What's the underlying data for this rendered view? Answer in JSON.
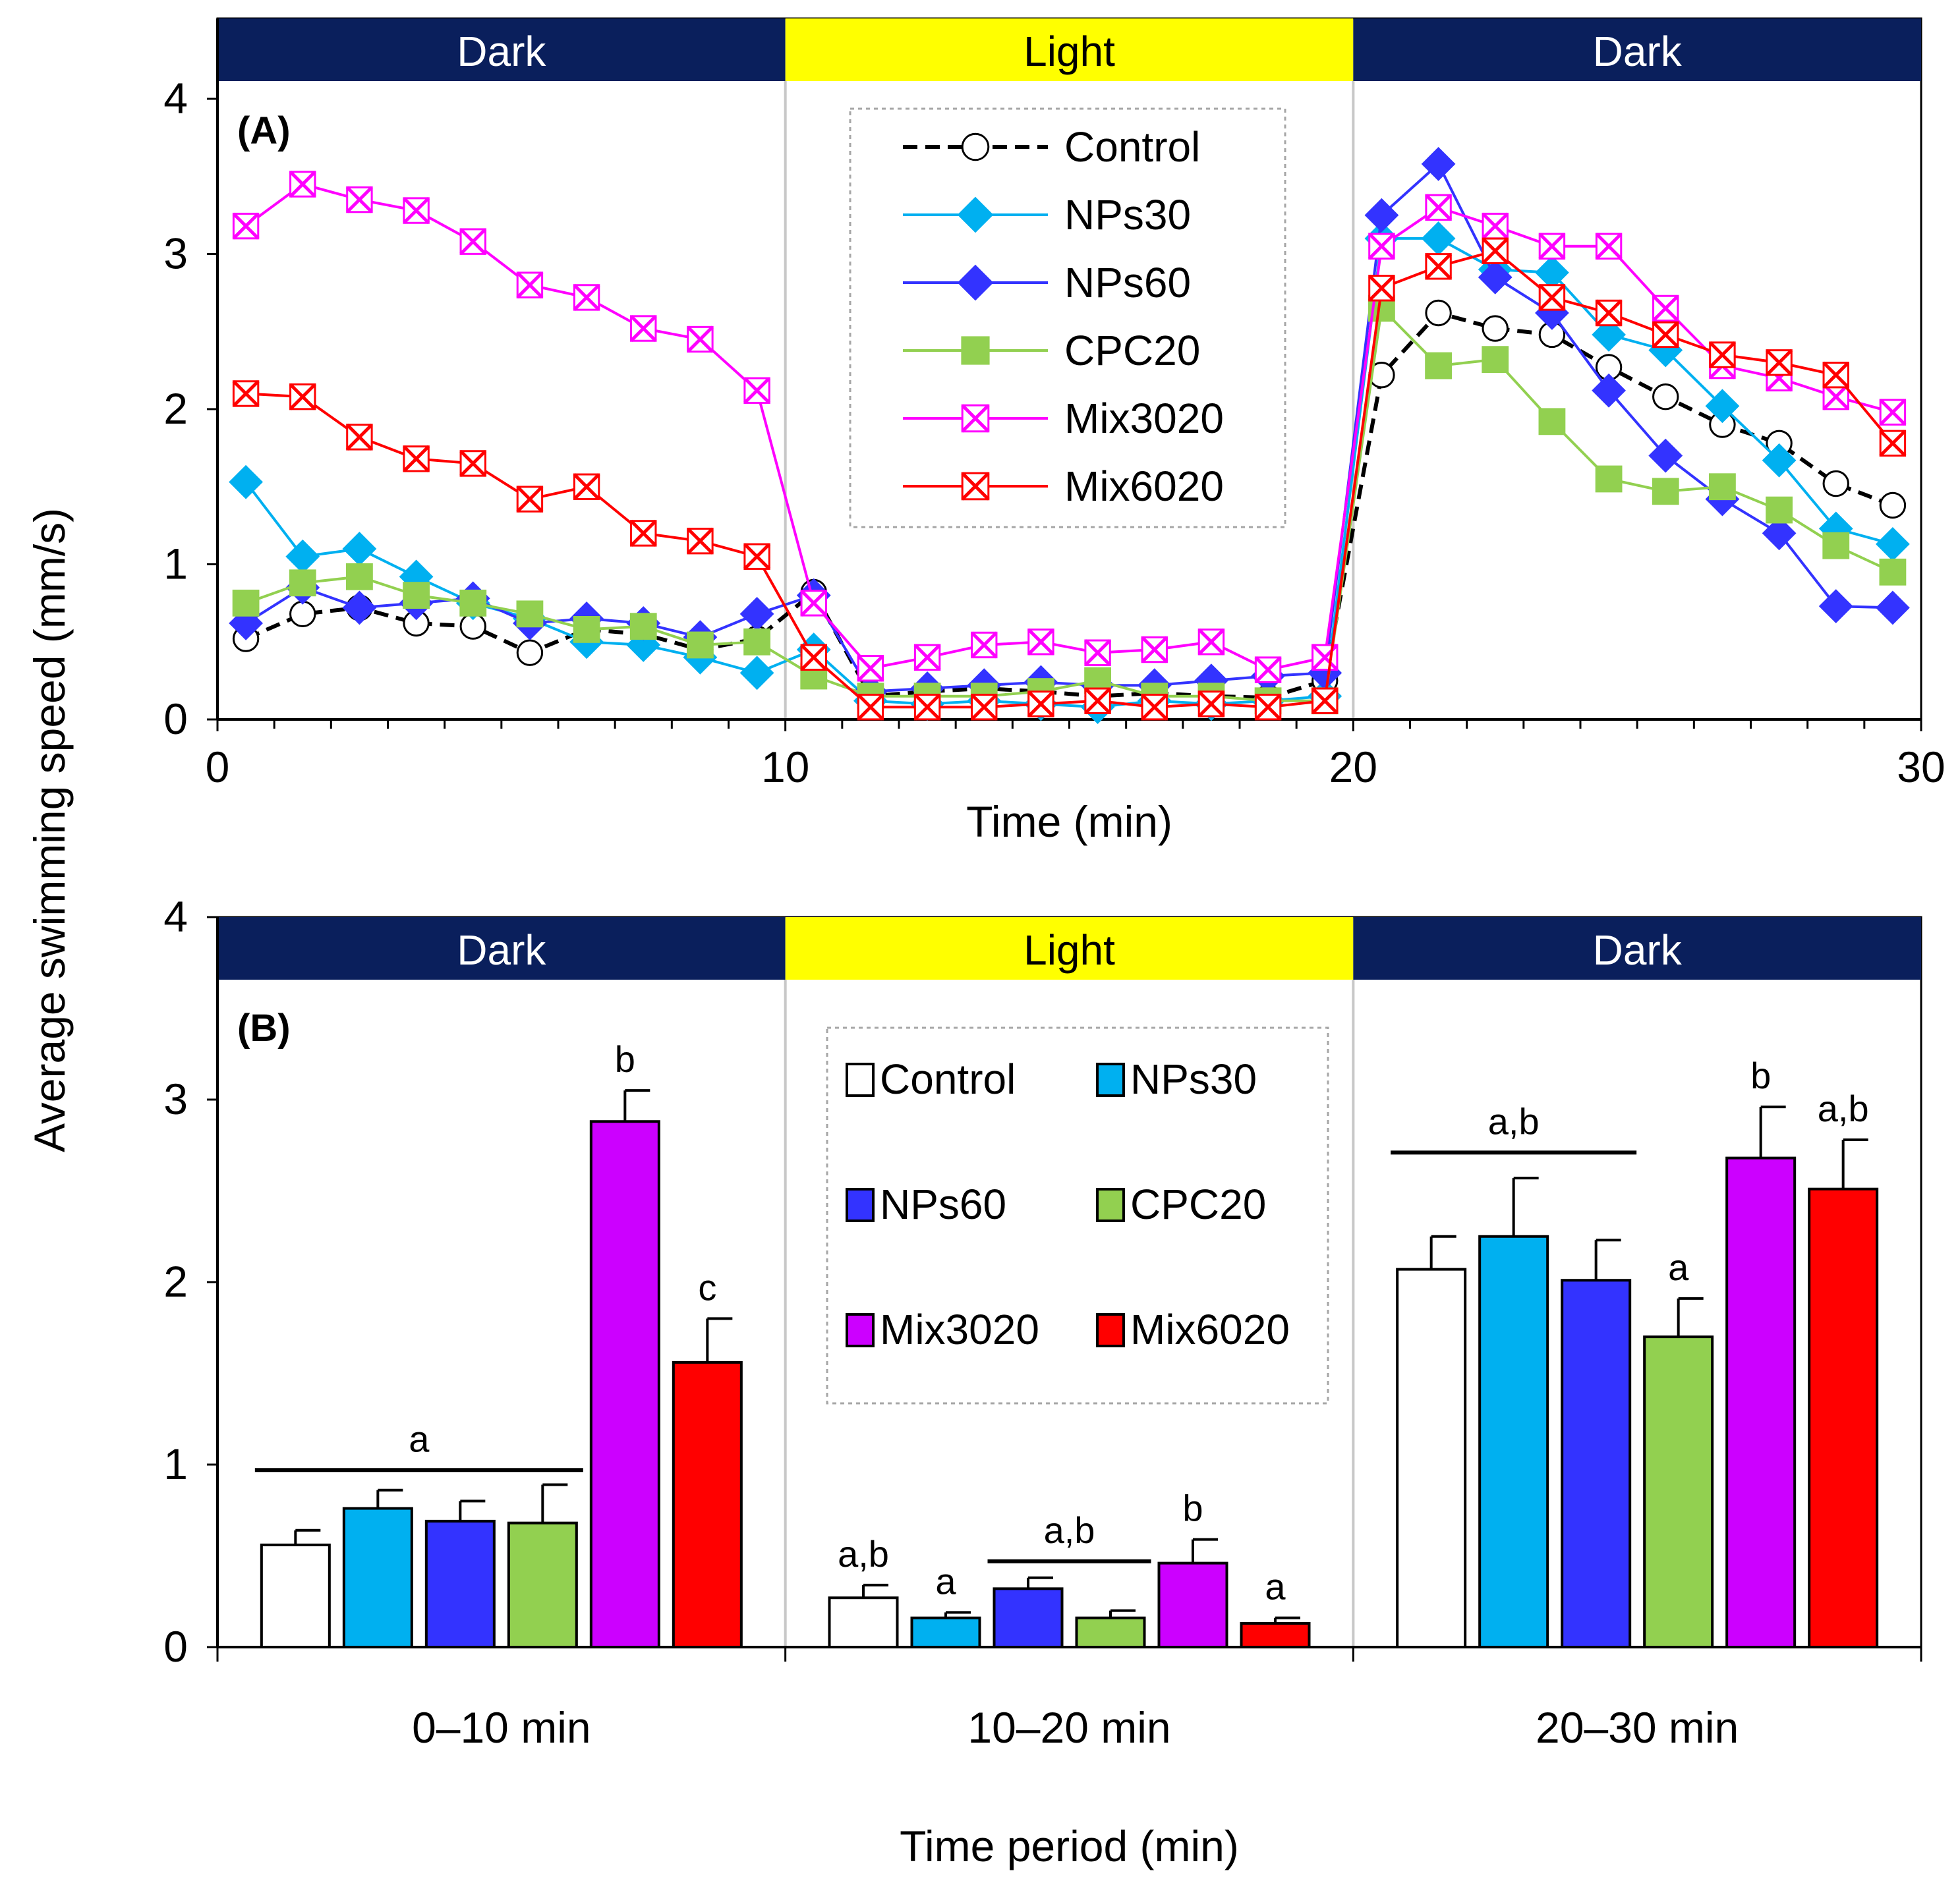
{
  "y_axis_title": "Average  swimming speed  (mm/s)",
  "colors": {
    "dark_band": "#0a1f5c",
    "light_band": "#ffff00",
    "divider": "#c8c8c8"
  },
  "chart_data": [
    {
      "type": "line",
      "panel_label": "(A)",
      "xlabel": "Time (min)",
      "ylabel": "Average  swimming speed  (mm/s)",
      "xlim": [
        0,
        30
      ],
      "ylim": [
        0,
        4
      ],
      "x_ticks": [
        "0",
        "10",
        "20",
        "30"
      ],
      "y_ticks": [
        "0",
        "1",
        "2",
        "3",
        "4"
      ],
      "phases": [
        {
          "label": "Dark",
          "start": 0,
          "end": 10,
          "kind": "dark"
        },
        {
          "label": "Light",
          "start": 10,
          "end": 20,
          "kind": "light"
        },
        {
          "label": "Dark",
          "start": 20,
          "end": 30,
          "kind": "dark"
        }
      ],
      "x": [
        0.5,
        1.5,
        2.5,
        3.5,
        4.5,
        5.5,
        6.5,
        7.5,
        8.5,
        9.5,
        10.5,
        11.5,
        12.5,
        13.5,
        14.5,
        15.5,
        16.5,
        17.5,
        18.5,
        19.5,
        20.5,
        21.5,
        22.5,
        23.5,
        24.5,
        25.5,
        26.5,
        27.5,
        28.5,
        29.5
      ],
      "legend_position": "top-center",
      "series": [
        {
          "name": "Control",
          "color": "#000000",
          "marker": "circle",
          "dashed": true,
          "values": [
            0.52,
            0.68,
            0.72,
            0.62,
            0.6,
            0.43,
            0.58,
            0.55,
            0.45,
            0.52,
            0.82,
            0.15,
            0.18,
            0.2,
            0.18,
            0.15,
            0.17,
            0.15,
            0.14,
            0.25,
            2.22,
            2.62,
            2.52,
            2.48,
            2.27,
            2.08,
            1.9,
            1.78,
            1.52,
            1.38
          ]
        },
        {
          "name": "NPs30",
          "color": "#00b0f0",
          "marker": "diamond",
          "dashed": false,
          "values": [
            1.53,
            1.05,
            1.1,
            0.92,
            0.75,
            0.65,
            0.5,
            0.48,
            0.4,
            0.3,
            0.45,
            0.12,
            0.1,
            0.12,
            0.1,
            0.08,
            0.12,
            0.1,
            0.12,
            0.15,
            3.1,
            3.1,
            2.9,
            2.88,
            2.48,
            2.38,
            2.02,
            1.67,
            1.23,
            1.13
          ]
        },
        {
          "name": "NPs60",
          "color": "#3333ff",
          "marker": "diamond",
          "dashed": false,
          "values": [
            0.62,
            0.85,
            0.72,
            0.75,
            0.78,
            0.62,
            0.65,
            0.62,
            0.53,
            0.68,
            0.8,
            0.18,
            0.2,
            0.22,
            0.24,
            0.22,
            0.22,
            0.25,
            0.28,
            0.3,
            3.25,
            3.58,
            2.85,
            2.62,
            2.12,
            1.7,
            1.42,
            1.2,
            0.73,
            0.72
          ]
        },
        {
          "name": "CPC20",
          "color": "#92d050",
          "marker": "square",
          "dashed": false,
          "values": [
            0.75,
            0.88,
            0.92,
            0.8,
            0.75,
            0.68,
            0.58,
            0.6,
            0.48,
            0.5,
            0.28,
            0.15,
            0.15,
            0.15,
            0.18,
            0.25,
            0.15,
            0.15,
            0.12,
            0.12,
            2.65,
            2.28,
            2.32,
            1.92,
            1.55,
            1.47,
            1.5,
            1.35,
            1.12,
            0.95
          ]
        },
        {
          "name": "Mix3020",
          "color": "#ff00ff",
          "marker": "xbox",
          "dashed": false,
          "values": [
            3.18,
            3.45,
            3.35,
            3.28,
            3.08,
            2.8,
            2.72,
            2.52,
            2.45,
            2.12,
            0.75,
            0.33,
            0.4,
            0.48,
            0.5,
            0.43,
            0.45,
            0.5,
            0.32,
            0.4,
            3.05,
            3.3,
            3.18,
            3.05,
            3.05,
            2.65,
            2.28,
            2.2,
            2.08,
            1.98
          ]
        },
        {
          "name": "Mix6020",
          "color": "#ff0000",
          "marker": "xbox",
          "dashed": false,
          "values": [
            2.1,
            2.08,
            1.82,
            1.68,
            1.65,
            1.42,
            1.5,
            1.2,
            1.15,
            1.05,
            0.4,
            0.08,
            0.08,
            0.08,
            0.1,
            0.12,
            0.08,
            0.1,
            0.08,
            0.12,
            2.78,
            2.92,
            3.02,
            2.72,
            2.62,
            2.48,
            2.35,
            2.3,
            2.22,
            1.78
          ]
        }
      ]
    },
    {
      "type": "bar",
      "panel_label": "(B)",
      "xlabel": "Time period (min)",
      "ylabel": "Average  swimming speed  (mm/s)",
      "ylim": [
        0,
        4
      ],
      "y_ticks": [
        "0",
        "1",
        "2",
        "3",
        "4"
      ],
      "categories": [
        "0–10 min",
        "10–20 min",
        "20–30 min"
      ],
      "phases": [
        {
          "label": "Dark",
          "kind": "dark"
        },
        {
          "label": "Light",
          "kind": "light"
        },
        {
          "label": "Dark",
          "kind": "dark"
        }
      ],
      "legend_position": "top-center",
      "series": [
        {
          "name": "Control",
          "color": "#ffffff",
          "values": [
            0.56,
            0.27,
            2.07
          ],
          "errors": [
            0.08,
            0.07,
            0.18
          ]
        },
        {
          "name": "NPs30",
          "color": "#00b0f0",
          "values": [
            0.76,
            0.16,
            2.25
          ],
          "errors": [
            0.1,
            0.03,
            0.32
          ]
        },
        {
          "name": "NPs60",
          "color": "#3333ff",
          "values": [
            0.69,
            0.32,
            2.01
          ],
          "errors": [
            0.11,
            0.06,
            0.22
          ]
        },
        {
          "name": "CPC20",
          "color": "#92d050",
          "values": [
            0.68,
            0.16,
            1.7
          ],
          "errors": [
            0.21,
            0.04,
            0.21
          ]
        },
        {
          "name": "Mix3020",
          "color": "#cc00ff",
          "values": [
            2.88,
            0.46,
            2.68
          ],
          "errors": [
            0.17,
            0.13,
            0.28
          ]
        },
        {
          "name": "Mix6020",
          "color": "#ff0000",
          "values": [
            1.56,
            0.13,
            2.51
          ],
          "errors": [
            0.24,
            0.03,
            0.27
          ]
        }
      ],
      "annotations": [
        {
          "text": "a",
          "category": 0,
          "span": [
            0,
            3
          ],
          "y": 0.97
        },
        {
          "text": "b",
          "category": 0,
          "span": [
            4,
            4
          ],
          "y": 3.05
        },
        {
          "text": "c",
          "category": 0,
          "span": [
            5,
            5
          ],
          "y": 1.8
        },
        {
          "text": "a,b",
          "category": 1,
          "span": [
            0,
            0
          ],
          "y": 0.34
        },
        {
          "text": "a",
          "category": 1,
          "span": [
            1,
            1
          ],
          "y": 0.19
        },
        {
          "text": "a,b",
          "category": 1,
          "span": [
            2,
            3
          ],
          "y": 0.47
        },
        {
          "text": "b",
          "category": 1,
          "span": [
            4,
            4
          ],
          "y": 0.59
        },
        {
          "text": "a",
          "category": 1,
          "span": [
            5,
            5
          ],
          "y": 0.16
        },
        {
          "text": "a,b",
          "category": 2,
          "span": [
            0,
            2
          ],
          "y": 2.71
        },
        {
          "text": "a",
          "category": 2,
          "span": [
            3,
            3
          ],
          "y": 1.91
        },
        {
          "text": "b",
          "category": 2,
          "span": [
            4,
            4
          ],
          "y": 2.96
        },
        {
          "text": "a,b",
          "category": 2,
          "span": [
            5,
            5
          ],
          "y": 2.78
        }
      ]
    }
  ]
}
